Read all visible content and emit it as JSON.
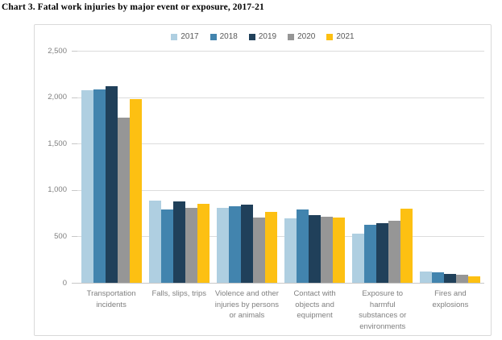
{
  "title": "Chart 3. Fatal work injuries by major event or exposure, 2017-21",
  "colors": {
    "grid": "#dcdcdc",
    "axis_line": "#c8c8c8",
    "frame_border": "#d9d9d9",
    "axis_text": "#7f7f7f",
    "legend_text": "#595959",
    "title_text": "#000000"
  },
  "chart_data": {
    "type": "bar",
    "title": "Chart 3. Fatal work injuries by major event or exposure, 2017-21",
    "xlabel": "",
    "ylabel": "",
    "ylim": [
      0,
      2500
    ],
    "yticks": [
      "0",
      "500",
      "1,000",
      "1,500",
      "2,000",
      "2,500"
    ],
    "grid": "horizontal gridlines at 500 intervals",
    "legend_position": "top-center",
    "categories": [
      "Transportation incidents",
      "Falls, slips, trips",
      "Violence and other injuries by persons or animals",
      "Contact with objects and equipment",
      "Exposure to harmful substances or environments",
      "Fires and explosions"
    ],
    "category_label_lines": [
      [
        "Transportation",
        "incidents"
      ],
      [
        "Falls, slips, trips"
      ],
      [
        "Violence and other",
        "injuries by persons",
        "or animals"
      ],
      [
        "Contact with",
        "objects and",
        "equipment"
      ],
      [
        "Exposure to",
        "harmful",
        "substances or",
        "environments"
      ],
      [
        "Fires and",
        "explosions"
      ]
    ],
    "series": [
      {
        "name": "2017",
        "color": "#afcfe1",
        "values": [
          2077,
          887,
          807,
          695,
          531,
          123
        ]
      },
      {
        "name": "2018",
        "color": "#4284ae",
        "values": [
          2080,
          791,
          828,
          786,
          621,
          115
        ]
      },
      {
        "name": "2019",
        "color": "#20405a",
        "values": [
          2122,
          880,
          841,
          732,
          642,
          99
        ]
      },
      {
        "name": "2020",
        "color": "#969696",
        "values": [
          1778,
          805,
          705,
          716,
          672,
          87
        ]
      },
      {
        "name": "2021",
        "color": "#fdc012",
        "values": [
          1982,
          850,
          761,
          705,
          798,
          72
        ]
      }
    ]
  }
}
